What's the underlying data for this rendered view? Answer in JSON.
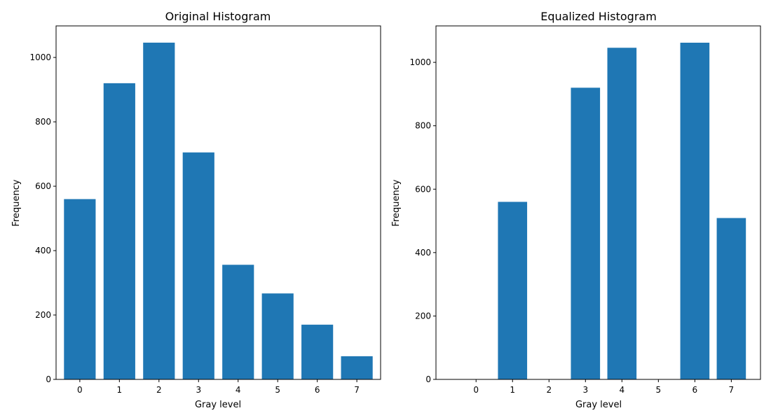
{
  "colors": {
    "bar": "#1f77b4",
    "axis": "#000000",
    "background": "#ffffff"
  },
  "chart_data": [
    {
      "type": "bar",
      "title": "Original Histogram",
      "xlabel": "Gray level",
      "ylabel": "Frequency",
      "categories": [
        "0",
        "1",
        "2",
        "3",
        "4",
        "5",
        "6",
        "7"
      ],
      "values": [
        560,
        920,
        1046,
        705,
        356,
        267,
        170,
        72
      ],
      "xlim": [
        -0.6,
        7.6
      ],
      "ylim": [
        0,
        1098
      ],
      "yticks": [
        0,
        200,
        400,
        600,
        800,
        1000
      ],
      "grid": false
    },
    {
      "type": "bar",
      "title": "Equalized Histogram",
      "xlabel": "Gray level",
      "ylabel": "Frequency",
      "categories": [
        "0",
        "1",
        "2",
        "3",
        "4",
        "5",
        "6",
        "7"
      ],
      "values": [
        0,
        560,
        0,
        920,
        1046,
        0,
        1062,
        509
      ],
      "xlim": [
        -1.1,
        7.8
      ],
      "ylim": [
        0,
        1115
      ],
      "yticks": [
        0,
        200,
        400,
        600,
        800,
        1000
      ],
      "grid": false
    }
  ]
}
